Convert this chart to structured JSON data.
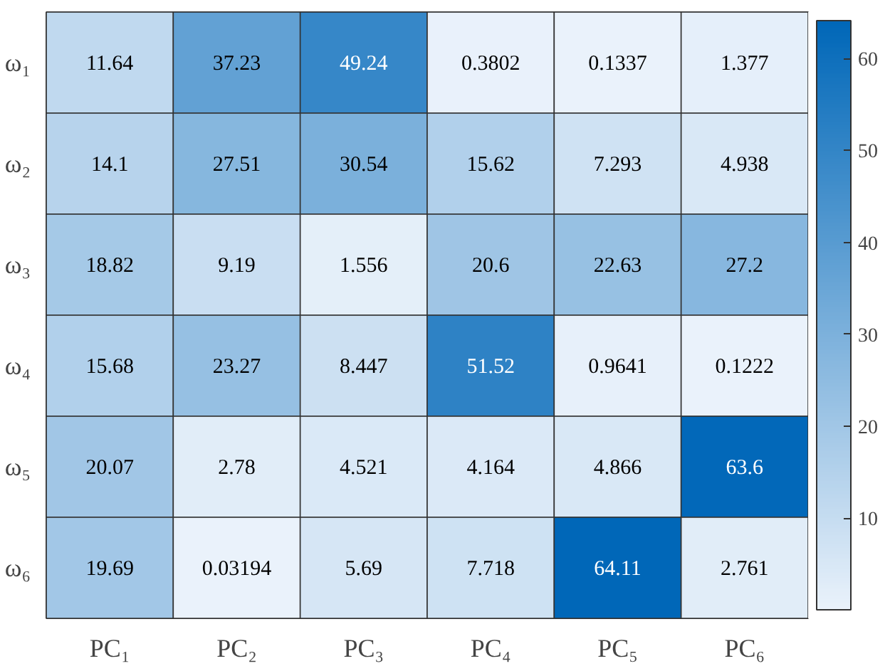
{
  "chart_data": {
    "type": "heatmap",
    "categories": [
      "PC₁",
      "PC₂",
      "PC₃",
      "PC₄",
      "PC₅",
      "PC₆"
    ],
    "y_categories": [
      "ω₁",
      "ω₂",
      "ω₃",
      "ω₄",
      "ω₅",
      "ω₆"
    ],
    "cells": [
      [
        11.64,
        37.23,
        49.24,
        0.3802,
        0.1337,
        1.377
      ],
      [
        14.1,
        27.51,
        30.54,
        15.62,
        7.293,
        4.938
      ],
      [
        18.82,
        9.19,
        1.556,
        20.6,
        22.63,
        27.2
      ],
      [
        15.68,
        23.27,
        8.447,
        51.52,
        0.9641,
        0.1222
      ],
      [
        20.07,
        2.78,
        4.521,
        4.164,
        4.866,
        63.6
      ],
      [
        19.69,
        0.03194,
        5.69,
        7.718,
        64.11,
        2.761
      ]
    ],
    "data_labels": true,
    "clim": [
      0.03194,
      64.11
    ],
    "cticks": [
      10,
      20,
      30,
      40,
      50,
      60
    ]
  }
}
